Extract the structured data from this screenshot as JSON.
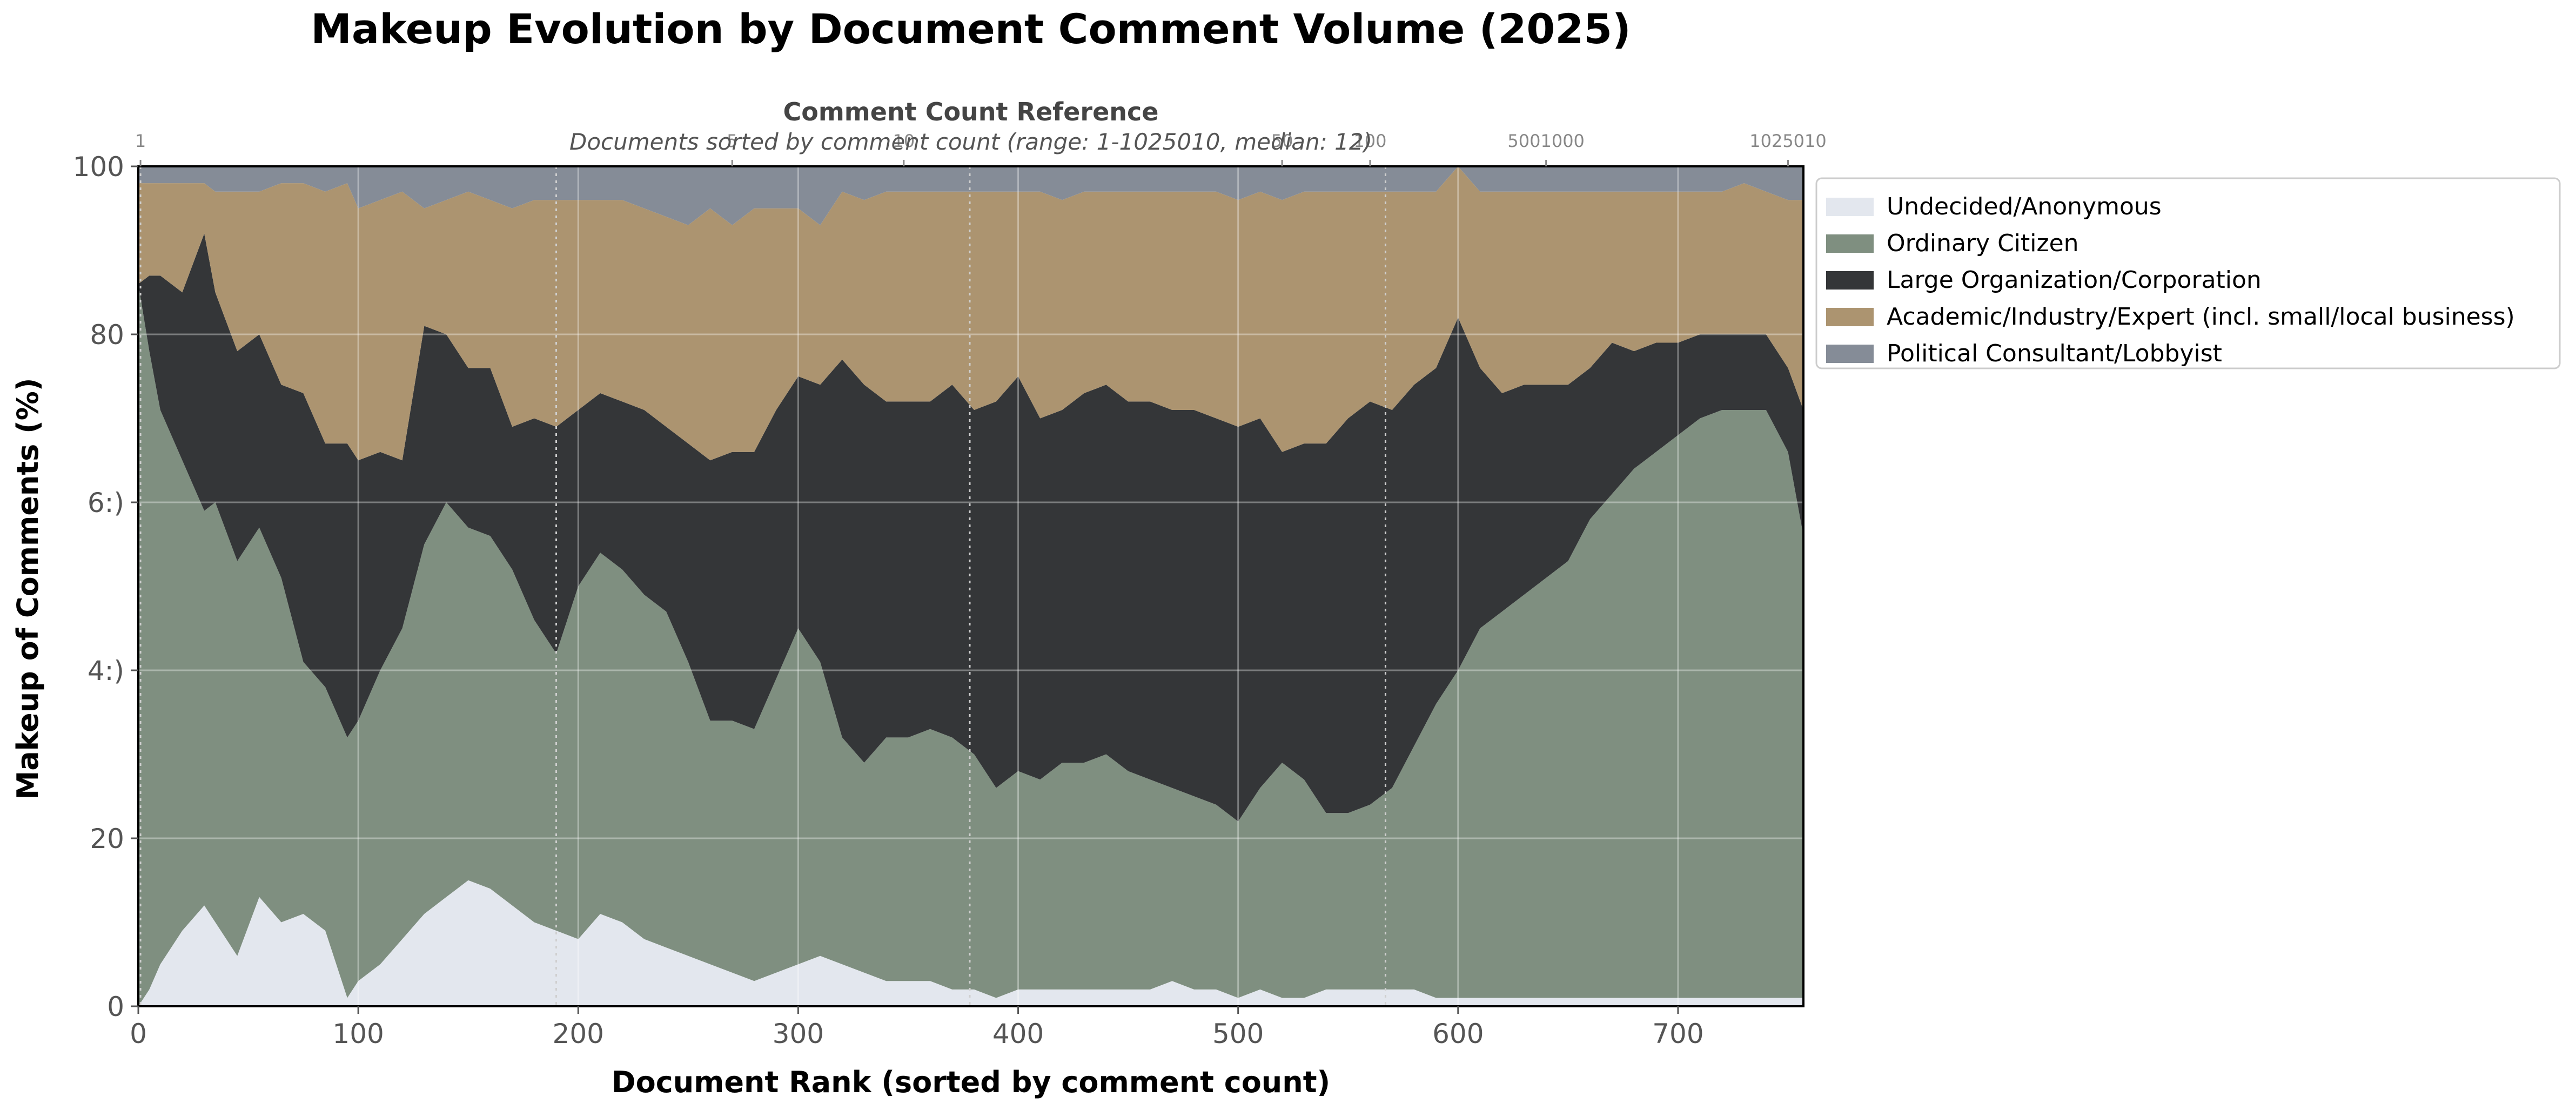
{
  "chart_data": {
    "type": "area",
    "stacked": true,
    "normalized_percent": true,
    "title": "Makeup Evolution by Document Comment Volume (2025)",
    "xlabel": "Document Rank (sorted by comment count)",
    "ylabel": "Makeup of Comments (%)",
    "xlim": [
      0,
      757
    ],
    "ylim": [
      0,
      100
    ],
    "x_ticks": [
      0,
      100,
      200,
      300,
      400,
      500,
      600,
      700
    ],
    "y_ticks": [
      0,
      20,
      40,
      60,
      80,
      100
    ],
    "y_tick_labels": [
      "0",
      "20",
      "4:)",
      "6:)",
      "80",
      "100"
    ],
    "grid": true,
    "legend_position": "outside-right-top",
    "top_axis": {
      "title": "Comment Count Reference",
      "subtitle": "Documents sorted by comment count (range: 1-1025010, median: 12)",
      "ticks": [
        {
          "x": 1,
          "label": "1"
        },
        {
          "x": 270,
          "label": "5"
        },
        {
          "x": 348,
          "label": "10"
        },
        {
          "x": 520,
          "label": "50"
        },
        {
          "x": 560,
          "label": "100"
        },
        {
          "x": 640,
          "label": "5001000"
        },
        {
          "x": 750,
          "label": "1025010"
        }
      ],
      "dotted_lines_x": [
        1,
        190,
        378,
        567,
        757
      ]
    },
    "x": [
      0,
      5,
      10,
      20,
      30,
      35,
      45,
      55,
      65,
      75,
      85,
      95,
      100,
      110,
      120,
      130,
      140,
      150,
      160,
      170,
      180,
      190,
      200,
      210,
      220,
      230,
      240,
      250,
      260,
      270,
      280,
      290,
      300,
      310,
      320,
      330,
      340,
      350,
      360,
      370,
      380,
      390,
      400,
      410,
      420,
      430,
      440,
      450,
      460,
      470,
      480,
      490,
      500,
      510,
      520,
      530,
      540,
      550,
      560,
      570,
      580,
      590,
      600,
      610,
      620,
      630,
      640,
      650,
      660,
      670,
      680,
      690,
      700,
      710,
      720,
      730,
      740,
      750,
      757
    ],
    "series": [
      {
        "name": "Undecided/Anonymous",
        "color": "#e3e7ee",
        "values": [
          0,
          2,
          5,
          9,
          12,
          10,
          6,
          13,
          10,
          11,
          9,
          1,
          3,
          5,
          8,
          11,
          13,
          15,
          14,
          12,
          10,
          9,
          8,
          11,
          10,
          8,
          7,
          6,
          5,
          4,
          3,
          4,
          5,
          6,
          5,
          4,
          3,
          3,
          3,
          2,
          2,
          1,
          2,
          2,
          2,
          2,
          2,
          2,
          2,
          3,
          2,
          2,
          1,
          2,
          1,
          1,
          2,
          2,
          2,
          2,
          2,
          1,
          1,
          1,
          1,
          1,
          1,
          1,
          1,
          1,
          1,
          1,
          1,
          1,
          1,
          1,
          1,
          1,
          1
        ]
      },
      {
        "name": "Ordinary Citizen",
        "color": "#7f8f80",
        "values": [
          86,
          76,
          66,
          56,
          47,
          50,
          47,
          44,
          41,
          30,
          29,
          31,
          31,
          35,
          37,
          44,
          47,
          42,
          42,
          40,
          36,
          33,
          42,
          43,
          42,
          41,
          40,
          35,
          29,
          30,
          30,
          35,
          40,
          35,
          27,
          25,
          29,
          29,
          30,
          30,
          28,
          25,
          26,
          25,
          27,
          27,
          28,
          26,
          25,
          23,
          23,
          22,
          21,
          24,
          28,
          26,
          21,
          21,
          22,
          24,
          29,
          35,
          39,
          44,
          46,
          48,
          50,
          52,
          57,
          60,
          63,
          65,
          67,
          69,
          70,
          70,
          70,
          65,
          55
        ]
      },
      {
        "name": "Large Organization/Corporation",
        "color": "#343638",
        "values": [
          0,
          9,
          16,
          20,
          33,
          25,
          25,
          23,
          23,
          32,
          29,
          35,
          31,
          26,
          20,
          26,
          20,
          19,
          20,
          17,
          24,
          27,
          21,
          19,
          20,
          22,
          22,
          26,
          31,
          32,
          33,
          32,
          30,
          33,
          45,
          45,
          40,
          40,
          39,
          42,
          41,
          46,
          47,
          43,
          42,
          44,
          44,
          44,
          45,
          45,
          46,
          46,
          47,
          44,
          37,
          40,
          44,
          47,
          48,
          45,
          43,
          40,
          42,
          31,
          26,
          25,
          23,
          21,
          18,
          18,
          14,
          13,
          11,
          10,
          9,
          9,
          9,
          10,
          15
        ]
      },
      {
        "name": "Academic/Industry/Expert (incl. small/local business)",
        "color": "#ac9470",
        "values": [
          12,
          11,
          11,
          13,
          6,
          12,
          19,
          17,
          24,
          25,
          30,
          31,
          30,
          30,
          32,
          14,
          16,
          21,
          20,
          26,
          26,
          27,
          25,
          23,
          24,
          24,
          25,
          26,
          30,
          27,
          29,
          24,
          20,
          19,
          20,
          22,
          25,
          25,
          25,
          23,
          26,
          25,
          22,
          27,
          25,
          24,
          23,
          25,
          25,
          26,
          26,
          27,
          27,
          27,
          30,
          30,
          30,
          27,
          25,
          26,
          23,
          21,
          18,
          21,
          24,
          23,
          23,
          23,
          21,
          18,
          19,
          18,
          18,
          17,
          17,
          18,
          17,
          20,
          25
        ]
      },
      {
        "name": "Political Consultant/Lobbyist",
        "color": "#858c97",
        "values": [
          2,
          2,
          2,
          2,
          2,
          3,
          3,
          3,
          2,
          2,
          3,
          2,
          5,
          4,
          3,
          5,
          4,
          3,
          4,
          5,
          4,
          4,
          4,
          4,
          4,
          5,
          6,
          7,
          5,
          7,
          5,
          5,
          5,
          7,
          3,
          4,
          3,
          3,
          3,
          3,
          3,
          3,
          3,
          3,
          4,
          3,
          3,
          3,
          3,
          3,
          3,
          3,
          4,
          3,
          4,
          3,
          3,
          3,
          3,
          3,
          3,
          3,
          0,
          3,
          3,
          3,
          3,
          3,
          3,
          3,
          3,
          3,
          3,
          3,
          3,
          2,
          3,
          4,
          4
        ]
      }
    ]
  }
}
